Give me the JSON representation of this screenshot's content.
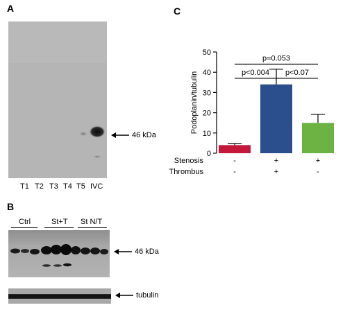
{
  "panelA": {
    "letter": "A",
    "lanes": [
      "T1",
      "T2",
      "T3",
      "T4",
      "T5",
      "IVC"
    ],
    "band_label": "46 kDa"
  },
  "panelB": {
    "letter": "B",
    "groups": [
      "Ctrl",
      "St+T",
      "St N/T"
    ],
    "band_label": "46 kDa",
    "loading_label": "tubulin"
  },
  "panelC": {
    "letter": "C",
    "chart_data": {
      "type": "bar",
      "categories": [
        "",
        "",
        ""
      ],
      "values": [
        4,
        34,
        15
      ],
      "errors": [
        0.8,
        7.5,
        4.2
      ],
      "colors": [
        "#c4173c",
        "#2b4e8c",
        "#6cb344"
      ],
      "ylabel": "Podoplanin/tubulin",
      "ylim": [
        0,
        50
      ],
      "yticks": [
        0,
        10,
        20,
        30,
        40,
        50
      ],
      "grid": false,
      "annotations": [
        {
          "text": "p=0.053",
          "from": 0,
          "to": 2
        },
        {
          "text": "p<0.004",
          "from": 0,
          "to": 1
        },
        {
          "text": "p<0.07",
          "from": 1,
          "to": 2
        }
      ],
      "conditions": [
        {
          "name": "Stenosis",
          "marks": [
            "-",
            "+",
            "+"
          ]
        },
        {
          "name": "Thrombus",
          "marks": [
            "-",
            "+",
            "-"
          ]
        }
      ]
    }
  }
}
